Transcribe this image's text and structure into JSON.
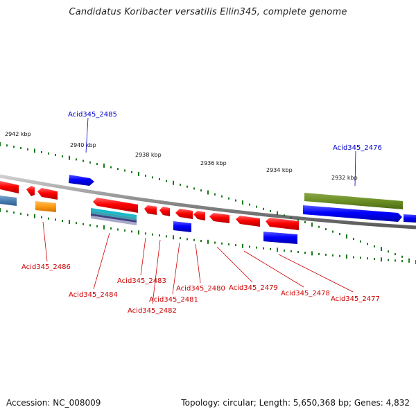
{
  "title": "Candidatus Koribacter versatilis Ellin345, complete genome",
  "footer": {
    "accession": "Accession: NC_008009",
    "summary": "Topology: circular; Length: 5,650,368 bp; Genes: 4,832"
  },
  "colors": {
    "label_forward": "#0000cc",
    "label_reverse": "#cc0000",
    "backbone": "#888888",
    "tick": "#1a7a1a"
  },
  "kbp_labels": [
    "2942 kbp",
    "2940 kbp",
    "2938 kbp",
    "2936 kbp",
    "2934 kbp",
    "2932 kbp"
  ],
  "gene_labels": [
    {
      "name": "Acid345_2485",
      "strand": "forward"
    },
    {
      "name": "Acid345_2476",
      "strand": "forward"
    },
    {
      "name": "Acid345_2486",
      "strand": "reverse"
    },
    {
      "name": "Acid345_2484",
      "strand": "reverse"
    },
    {
      "name": "Acid345_2483",
      "strand": "reverse"
    },
    {
      "name": "Acid345_2481",
      "strand": "reverse"
    },
    {
      "name": "Acid345_2482",
      "strand": "reverse"
    },
    {
      "name": "Acid345_2480",
      "strand": "reverse"
    },
    {
      "name": "Acid345_2479",
      "strand": "reverse"
    },
    {
      "name": "Acid345_2478",
      "strand": "reverse"
    },
    {
      "name": "Acid345_2477",
      "strand": "reverse"
    }
  ]
}
